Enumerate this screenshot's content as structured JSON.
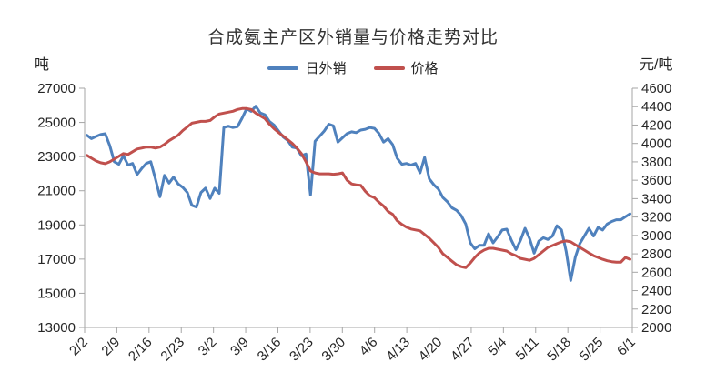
{
  "title": "合成氨主产区外销量与价格走势对比",
  "chart_data": {
    "type": "line",
    "title": "合成氨主产区外销量与价格走势对比",
    "grid": false,
    "legend": {
      "position": "top",
      "items": [
        "日外销",
        "价格"
      ]
    },
    "x_tick_labels": [
      "2/2",
      "2/9",
      "2/16",
      "2/23",
      "3/2",
      "3/9",
      "3/16",
      "3/23",
      "3/30",
      "4/6",
      "4/13",
      "4/20",
      "4/27",
      "5/4",
      "5/11",
      "5/18",
      "5/25",
      "6/1"
    ],
    "x": [
      "2/2",
      "2/3",
      "2/4",
      "2/5",
      "2/6",
      "2/7",
      "2/8",
      "2/9",
      "2/10",
      "2/11",
      "2/12",
      "2/13",
      "2/14",
      "2/15",
      "2/16",
      "2/17",
      "2/18",
      "2/19",
      "2/20",
      "2/21",
      "2/22",
      "2/23",
      "2/24",
      "2/25",
      "2/26",
      "2/27",
      "2/28",
      "3/1",
      "3/2",
      "3/3",
      "3/4",
      "3/5",
      "3/6",
      "3/7",
      "3/8",
      "3/9",
      "3/10",
      "3/11",
      "3/12",
      "3/13",
      "3/14",
      "3/15",
      "3/16",
      "3/17",
      "3/18",
      "3/19",
      "3/20",
      "3/21",
      "3/22",
      "3/23",
      "3/24",
      "3/25",
      "3/26",
      "3/27",
      "3/28",
      "3/29",
      "3/30",
      "3/31",
      "4/1",
      "4/2",
      "4/3",
      "4/4",
      "4/5",
      "4/6",
      "4/7",
      "4/8",
      "4/9",
      "4/10",
      "4/11",
      "4/12",
      "4/13",
      "4/14",
      "4/15",
      "4/16",
      "4/17",
      "4/18",
      "4/19",
      "4/20",
      "4/21",
      "4/22",
      "4/23",
      "4/24",
      "4/25",
      "4/26",
      "4/27",
      "4/28",
      "4/29",
      "4/30",
      "5/1",
      "5/2",
      "5/3",
      "5/4",
      "5/5",
      "5/6",
      "5/7",
      "5/8",
      "5/9",
      "5/10",
      "5/11",
      "5/12",
      "5/13",
      "5/14",
      "5/15",
      "5/16",
      "5/17",
      "5/18",
      "5/19",
      "5/20",
      "5/21",
      "5/22",
      "5/23",
      "5/24",
      "5/25",
      "5/26",
      "5/27",
      "5/28",
      "5/29",
      "5/30",
      "5/31",
      "6/1"
    ],
    "series": [
      {
        "name": "日外销",
        "axis": "left",
        "color": "#4F81BD",
        "values": [
          24250,
          24050,
          24180,
          24290,
          24340,
          23650,
          22700,
          22550,
          23050,
          22500,
          22600,
          21950,
          22300,
          22600,
          22700,
          21700,
          20650,
          21900,
          21450,
          21800,
          21400,
          21200,
          20900,
          20150,
          20050,
          20900,
          21150,
          20550,
          21150,
          20850,
          24700,
          24780,
          24700,
          24760,
          25250,
          25800,
          25650,
          25950,
          25550,
          25450,
          25050,
          24850,
          24500,
          24150,
          23950,
          23550,
          23500,
          23050,
          23150,
          20750,
          23900,
          24200,
          24500,
          24900,
          24800,
          23850,
          24100,
          24350,
          24450,
          24400,
          24550,
          24600,
          24700,
          24650,
          24350,
          23850,
          24050,
          23700,
          22900,
          22550,
          22600,
          22500,
          22600,
          22050,
          22950,
          21700,
          21350,
          21100,
          20600,
          20350,
          20000,
          19850,
          19550,
          19050,
          17950,
          17600,
          17800,
          17800,
          18480,
          17950,
          18300,
          18700,
          18750,
          18100,
          17550,
          18100,
          18800,
          18200,
          17350,
          18050,
          18250,
          18150,
          18350,
          18950,
          18700,
          17450,
          15750,
          17100,
          17900,
          18350,
          18800,
          18350,
          18850,
          18700,
          19050,
          19200,
          19300,
          19300,
          19480,
          19650
        ]
      },
      {
        "name": "价格",
        "axis": "right",
        "color": "#C0504D",
        "values": [
          3870,
          3840,
          3810,
          3790,
          3780,
          3800,
          3830,
          3860,
          3890,
          3880,
          3910,
          3940,
          3950,
          3960,
          3960,
          3950,
          3960,
          3990,
          4030,
          4060,
          4090,
          4140,
          4180,
          4220,
          4230,
          4240,
          4240,
          4250,
          4290,
          4320,
          4330,
          4340,
          4350,
          4370,
          4380,
          4380,
          4370,
          4330,
          4300,
          4270,
          4210,
          4160,
          4120,
          4080,
          4040,
          4000,
          3950,
          3890,
          3800,
          3700,
          3680,
          3670,
          3670,
          3670,
          3665,
          3670,
          3680,
          3600,
          3560,
          3550,
          3545,
          3480,
          3430,
          3410,
          3360,
          3320,
          3260,
          3230,
          3160,
          3120,
          3090,
          3070,
          3060,
          3050,
          3010,
          2970,
          2920,
          2870,
          2800,
          2760,
          2720,
          2680,
          2660,
          2650,
          2700,
          2760,
          2810,
          2840,
          2860,
          2860,
          2850,
          2840,
          2830,
          2800,
          2780,
          2750,
          2740,
          2730,
          2750,
          2790,
          2830,
          2870,
          2890,
          2910,
          2930,
          2940,
          2930,
          2900,
          2870,
          2840,
          2810,
          2780,
          2760,
          2740,
          2725,
          2715,
          2710,
          2710,
          2760,
          2740
        ]
      }
    ],
    "y_left": {
      "unit": "吨",
      "min": 13000,
      "max": 27000,
      "step": 2000,
      "ticks": [
        "27000",
        "25000",
        "23000",
        "21000",
        "19000",
        "17000",
        "15000",
        "13000"
      ]
    },
    "y_right": {
      "unit": "元/吨",
      "min": 2000,
      "max": 4600,
      "step": 200,
      "ticks": [
        "4600",
        "4400",
        "4200",
        "4000",
        "3800",
        "3600",
        "3400",
        "3200",
        "3000",
        "2800",
        "2600",
        "2400",
        "2200",
        "2000"
      ]
    }
  }
}
